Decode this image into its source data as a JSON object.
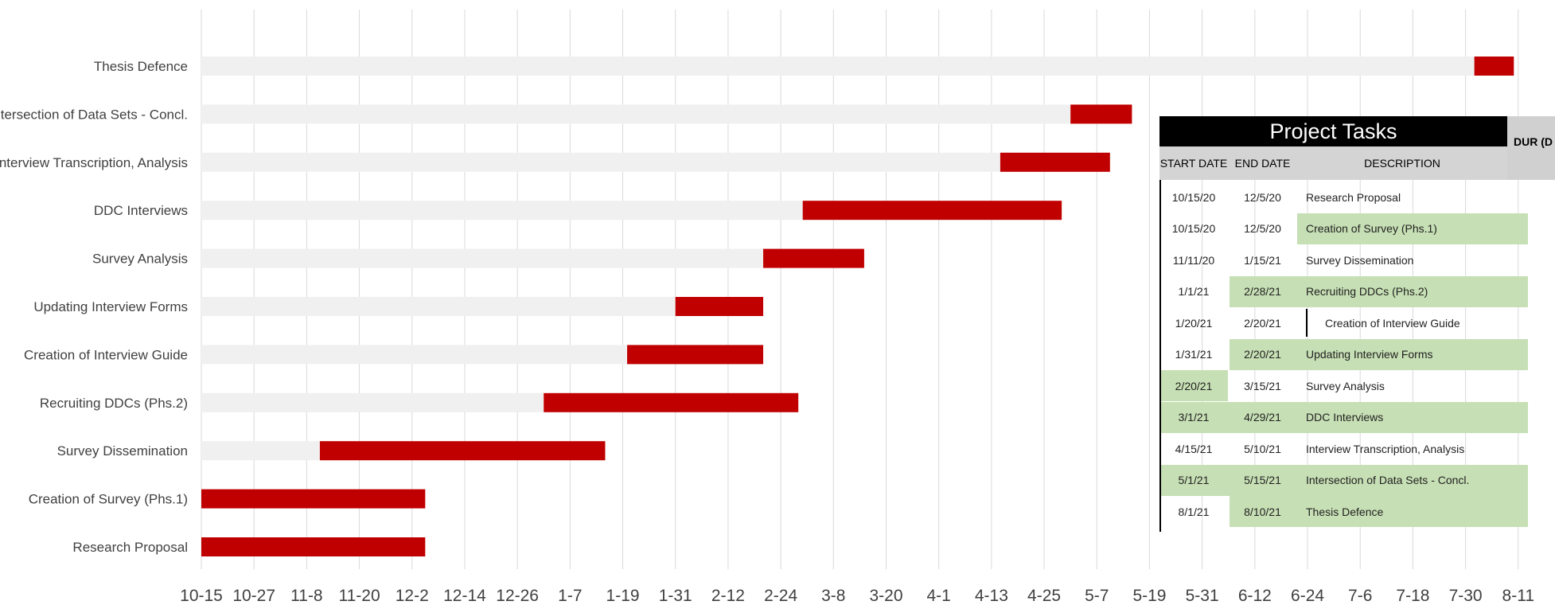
{
  "chart_data": {
    "type": "gantt",
    "x_ticks": [
      "10-15",
      "10-27",
      "11-8",
      "11-20",
      "12-2",
      "12-14",
      "12-26",
      "1-7",
      "1-19",
      "1-31",
      "2-12",
      "2-24",
      "3-8",
      "3-20",
      "4-1",
      "4-13",
      "4-25",
      "5-7",
      "5-19",
      "5-31",
      "6-12",
      "6-24",
      "7-6",
      "7-18",
      "7-30",
      "8-11"
    ],
    "tasks": [
      {
        "label": "Research Proposal",
        "start": "10/15/20",
        "end": "12/5/20"
      },
      {
        "label": "Creation of Survey (Phs.1)",
        "start": "10/15/20",
        "end": "12/5/20"
      },
      {
        "label": "Survey Dissemination",
        "start": "11/11/20",
        "end": "1/15/21"
      },
      {
        "label": "Recruiting DDCs (Phs.2)",
        "start": "1/1/21",
        "end": "2/28/21"
      },
      {
        "label": "Creation of  Interview Guide",
        "start": "1/20/21",
        "end": "2/20/21"
      },
      {
        "label": "Updating Interview Forms",
        "start": "1/31/21",
        "end": "2/20/21"
      },
      {
        "label": "Survey Analysis",
        "start": "2/20/21",
        "end": "3/15/21"
      },
      {
        "label": "DDC Interviews",
        "start": "3/1/21",
        "end": "4/29/21"
      },
      {
        "label": "Interview Transcription, Analysis",
        "start": "4/15/21",
        "end": "5/10/21"
      },
      {
        "label": "Intersection of Data Sets - Concl.",
        "start": "5/1/21",
        "end": "5/15/21"
      },
      {
        "label": "Thesis Defence",
        "start": "8/1/21",
        "end": "8/10/21"
      }
    ],
    "colors": {
      "bar": "#c00000",
      "track": "#f0f0f0",
      "grid": "#d9d9d9",
      "tick_text": "#404040"
    }
  },
  "table": {
    "title": "Project Tasks",
    "duration_header": "DUR (D",
    "columns": [
      "START DATE",
      "END DATE",
      "DESCRIPTION"
    ],
    "rows": [
      {
        "start": "10/15/20",
        "end": "12/5/20",
        "desc": "Research Proposal",
        "hl": "none"
      },
      {
        "start": "10/15/20",
        "end": "12/5/20",
        "desc": "Creation of Survey (Phs.1)",
        "hl": "desc"
      },
      {
        "start": "11/11/20",
        "end": "1/15/21",
        "desc": "Survey Dissemination",
        "hl": "none"
      },
      {
        "start": "1/1/21",
        "end": "2/28/21",
        "desc": "Recruiting DDCs (Phs.2)",
        "hl": "enddesc"
      },
      {
        "start": "1/20/21",
        "end": "2/20/21",
        "desc": "Creation of  Interview Guide",
        "hl": "none"
      },
      {
        "start": "1/31/21",
        "end": "2/20/21",
        "desc": "Updating Interview Forms",
        "hl": "enddesc"
      },
      {
        "start": "2/20/21",
        "end": "3/15/21",
        "desc": "Survey Analysis",
        "hl": "start"
      },
      {
        "start": "3/1/21",
        "end": "4/29/21",
        "desc": "DDC Interviews",
        "hl": "all"
      },
      {
        "start": "4/15/21",
        "end": "5/10/21",
        "desc": "Interview Transcription, Analysis",
        "hl": "none"
      },
      {
        "start": "5/1/21",
        "end": "5/15/21",
        "desc": "Intersection of Data Sets - Concl.",
        "hl": "all"
      },
      {
        "start": "8/1/21",
        "end": "8/10/21",
        "desc": "Thesis Defence",
        "hl": "enddesc"
      }
    ],
    "colors": {
      "header_bg": "#000000",
      "colhead_bg": "#d4d4d4",
      "highlight": "#c6dfb4"
    }
  }
}
